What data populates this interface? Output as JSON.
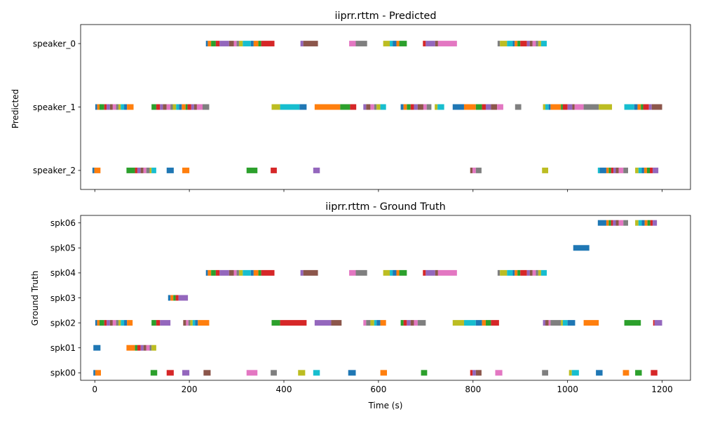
{
  "chart_data": [
    {
      "type": "timeline",
      "title": "iiprr.rttm - Predicted",
      "ylabel": "Predicted",
      "xlabel": "",
      "xlim": [
        -30,
        1260
      ],
      "xticks": [
        0,
        200,
        400,
        600,
        800,
        1000,
        1200
      ],
      "xtick_labels_shown": false,
      "rows": [
        "speaker_2",
        "speaker_1",
        "speaker_0"
      ],
      "segments": {
        "speaker_0": [
          [
            235,
            239
          ],
          [
            239,
            246
          ],
          [
            246,
            256
          ],
          [
            256,
            264
          ],
          [
            264,
            284
          ],
          [
            284,
            294
          ],
          [
            294,
            300
          ],
          [
            300,
            305
          ],
          [
            305,
            313
          ],
          [
            313,
            330
          ],
          [
            330,
            336
          ],
          [
            336,
            346
          ],
          [
            346,
            352
          ],
          [
            352,
            380
          ],
          [
            435,
            441
          ],
          [
            441,
            472
          ],
          [
            538,
            552
          ],
          [
            552,
            576
          ],
          [
            610,
            624
          ],
          [
            624,
            630
          ],
          [
            630,
            638
          ],
          [
            638,
            644
          ],
          [
            644,
            660
          ],
          [
            694,
            700
          ],
          [
            700,
            720
          ],
          [
            720,
            726
          ],
          [
            726,
            766
          ],
          [
            852,
            857
          ],
          [
            857,
            872
          ],
          [
            872,
            884
          ],
          [
            884,
            888
          ],
          [
            888,
            894
          ],
          [
            894,
            900
          ],
          [
            900,
            914
          ],
          [
            914,
            920
          ],
          [
            920,
            926
          ],
          [
            926,
            933
          ],
          [
            933,
            938
          ],
          [
            938,
            944
          ],
          [
            944,
            956
          ]
        ],
        "speaker_1": [
          [
            1,
            5
          ],
          [
            5,
            10
          ],
          [
            10,
            20
          ],
          [
            20,
            25
          ],
          [
            25,
            32
          ],
          [
            32,
            38
          ],
          [
            38,
            45
          ],
          [
            45,
            50
          ],
          [
            50,
            55
          ],
          [
            55,
            62
          ],
          [
            62,
            68
          ],
          [
            68,
            82
          ],
          [
            120,
            130
          ],
          [
            130,
            138
          ],
          [
            138,
            144
          ],
          [
            144,
            152
          ],
          [
            152,
            160
          ],
          [
            160,
            165
          ],
          [
            165,
            172
          ],
          [
            172,
            178
          ],
          [
            178,
            184
          ],
          [
            184,
            192
          ],
          [
            192,
            196
          ],
          [
            196,
            204
          ],
          [
            204,
            210
          ],
          [
            210,
            216
          ],
          [
            216,
            228
          ],
          [
            228,
            242
          ],
          [
            374,
            392
          ],
          [
            392,
            433
          ],
          [
            433,
            448
          ],
          [
            465,
            519
          ],
          [
            519,
            540
          ],
          [
            540,
            553
          ],
          [
            568,
            574
          ],
          [
            574,
            583
          ],
          [
            583,
            591
          ],
          [
            591,
            596
          ],
          [
            596,
            604
          ],
          [
            604,
            616
          ],
          [
            647,
            653
          ],
          [
            653,
            660
          ],
          [
            660,
            668
          ],
          [
            668,
            675
          ],
          [
            675,
            683
          ],
          [
            683,
            695
          ],
          [
            695,
            702
          ],
          [
            702,
            712
          ],
          [
            719,
            725
          ],
          [
            725,
            739
          ],
          [
            757,
            781
          ],
          [
            781,
            806
          ],
          [
            806,
            819
          ],
          [
            819,
            827
          ],
          [
            827,
            838
          ],
          [
            838,
            851
          ],
          [
            851,
            864
          ],
          [
            889,
            902
          ],
          [
            948,
            953
          ],
          [
            953,
            960
          ],
          [
            960,
            964
          ],
          [
            964,
            986
          ],
          [
            986,
            990
          ],
          [
            990,
            1000
          ],
          [
            1000,
            1010
          ],
          [
            1010,
            1015
          ],
          [
            1015,
            1034
          ],
          [
            1034,
            1066
          ],
          [
            1066,
            1094
          ],
          [
            1120,
            1141
          ],
          [
            1141,
            1148
          ],
          [
            1148,
            1155
          ],
          [
            1155,
            1160
          ],
          [
            1160,
            1172
          ],
          [
            1172,
            1178
          ],
          [
            1178,
            1200
          ]
        ],
        "speaker_2": [
          [
            -5,
            -1
          ],
          [
            -1,
            12
          ],
          [
            67,
            85
          ],
          [
            85,
            90
          ],
          [
            90,
            97
          ],
          [
            97,
            103
          ],
          [
            103,
            109
          ],
          [
            109,
            116
          ],
          [
            116,
            120
          ],
          [
            120,
            130
          ],
          [
            152,
            167
          ],
          [
            185,
            200
          ],
          [
            321,
            344
          ],
          [
            372,
            385
          ],
          [
            462,
            476
          ],
          [
            794,
            799
          ],
          [
            799,
            806
          ],
          [
            806,
            818
          ],
          [
            946,
            959
          ],
          [
            1064,
            1068
          ],
          [
            1068,
            1082
          ],
          [
            1082,
            1087
          ],
          [
            1087,
            1092
          ],
          [
            1092,
            1097
          ],
          [
            1097,
            1102
          ],
          [
            1102,
            1108
          ],
          [
            1108,
            1118
          ],
          [
            1118,
            1128
          ],
          [
            1143,
            1150
          ],
          [
            1150,
            1157
          ],
          [
            1157,
            1162
          ],
          [
            1162,
            1168
          ],
          [
            1168,
            1174
          ],
          [
            1174,
            1180
          ],
          [
            1180,
            1192
          ]
        ]
      }
    },
    {
      "type": "timeline",
      "title": "iiprr.rttm - Ground Truth",
      "ylabel": "Ground Truth",
      "xlabel": "Time (s)",
      "xlim": [
        -30,
        1260
      ],
      "xticks": [
        0,
        200,
        400,
        600,
        800,
        1000,
        1200
      ],
      "rows": [
        "spk00",
        "spk01",
        "spk02",
        "spk03",
        "spk04",
        "spk05",
        "spk06"
      ],
      "segments": {
        "spk06": [
          [
            1064,
            1082
          ],
          [
            1082,
            1087
          ],
          [
            1087,
            1092
          ],
          [
            1092,
            1096
          ],
          [
            1096,
            1102
          ],
          [
            1102,
            1108
          ],
          [
            1108,
            1118
          ],
          [
            1118,
            1128
          ],
          [
            1143,
            1150
          ],
          [
            1150,
            1157
          ],
          [
            1157,
            1163
          ],
          [
            1163,
            1169
          ],
          [
            1169,
            1175
          ],
          [
            1175,
            1180
          ],
          [
            1180,
            1189
          ]
        ],
        "spk05": [
          [
            1012,
            1046
          ]
        ],
        "spk04": [
          [
            235,
            239
          ],
          [
            239,
            246
          ],
          [
            246,
            256
          ],
          [
            256,
            264
          ],
          [
            264,
            284
          ],
          [
            284,
            294
          ],
          [
            294,
            300
          ],
          [
            300,
            305
          ],
          [
            305,
            313
          ],
          [
            313,
            330
          ],
          [
            330,
            336
          ],
          [
            336,
            346
          ],
          [
            346,
            352
          ],
          [
            352,
            380
          ],
          [
            435,
            441
          ],
          [
            441,
            472
          ],
          [
            538,
            552
          ],
          [
            552,
            576
          ],
          [
            610,
            624
          ],
          [
            624,
            630
          ],
          [
            630,
            638
          ],
          [
            638,
            644
          ],
          [
            644,
            660
          ],
          [
            694,
            700
          ],
          [
            700,
            720
          ],
          [
            720,
            726
          ],
          [
            726,
            766
          ],
          [
            852,
            857
          ],
          [
            857,
            872
          ],
          [
            872,
            884
          ],
          [
            884,
            888
          ],
          [
            888,
            894
          ],
          [
            894,
            900
          ],
          [
            900,
            914
          ],
          [
            914,
            920
          ],
          [
            920,
            926
          ],
          [
            926,
            933
          ],
          [
            933,
            938
          ],
          [
            938,
            944
          ],
          [
            944,
            956
          ]
        ],
        "spk03": [
          [
            155,
            160
          ],
          [
            160,
            166
          ],
          [
            166,
            171
          ],
          [
            171,
            177
          ],
          [
            177,
            197
          ]
        ],
        "spk02": [
          [
            1,
            5
          ],
          [
            5,
            10
          ],
          [
            10,
            20
          ],
          [
            20,
            25
          ],
          [
            25,
            32
          ],
          [
            32,
            38
          ],
          [
            38,
            45
          ],
          [
            45,
            50
          ],
          [
            50,
            55
          ],
          [
            55,
            62
          ],
          [
            62,
            68
          ],
          [
            68,
            80
          ],
          [
            120,
            130
          ],
          [
            130,
            138
          ],
          [
            138,
            160
          ],
          [
            187,
            193
          ],
          [
            193,
            198
          ],
          [
            198,
            202
          ],
          [
            202,
            207
          ],
          [
            207,
            212
          ],
          [
            212,
            218
          ],
          [
            218,
            242
          ],
          [
            374,
            392
          ],
          [
            392,
            448
          ],
          [
            465,
            500
          ],
          [
            500,
            522
          ],
          [
            568,
            574
          ],
          [
            574,
            583
          ],
          [
            583,
            591
          ],
          [
            591,
            596
          ],
          [
            596,
            604
          ],
          [
            604,
            616
          ],
          [
            647,
            653
          ],
          [
            653,
            660
          ],
          [
            660,
            668
          ],
          [
            668,
            675
          ],
          [
            675,
            683
          ],
          [
            683,
            700
          ],
          [
            757,
            781
          ],
          [
            781,
            806
          ],
          [
            806,
            819
          ],
          [
            819,
            827
          ],
          [
            827,
            838
          ],
          [
            838,
            855
          ],
          [
            948,
            953
          ],
          [
            953,
            960
          ],
          [
            960,
            964
          ],
          [
            964,
            986
          ],
          [
            986,
            990
          ],
          [
            990,
            1000
          ],
          [
            1000,
            1016
          ],
          [
            1034,
            1066
          ],
          [
            1120,
            1155
          ],
          [
            1181,
            1184
          ],
          [
            1184,
            1200
          ]
        ],
        "spk01": [
          [
            -3,
            12
          ],
          [
            67,
            85
          ],
          [
            85,
            90
          ],
          [
            90,
            97
          ],
          [
            97,
            103
          ],
          [
            103,
            109
          ],
          [
            109,
            116
          ],
          [
            116,
            120
          ],
          [
            120,
            130
          ]
        ],
        "spk00": [
          [
            -3,
            1
          ],
          [
            1,
            13
          ],
          [
            118,
            132
          ],
          [
            152,
            167
          ],
          [
            185,
            200
          ],
          [
            230,
            245
          ],
          [
            321,
            344
          ],
          [
            372,
            385
          ],
          [
            430,
            445
          ],
          [
            462,
            476
          ],
          [
            536,
            552
          ],
          [
            604,
            618
          ],
          [
            690,
            703
          ],
          [
            794,
            799
          ],
          [
            799,
            806
          ],
          [
            806,
            818
          ],
          [
            847,
            862
          ],
          [
            946,
            959
          ],
          [
            1003,
            1009
          ],
          [
            1009,
            1024
          ],
          [
            1060,
            1074
          ],
          [
            1117,
            1130
          ],
          [
            1143,
            1157
          ],
          [
            1176,
            1190
          ]
        ]
      }
    }
  ],
  "palette": [
    "#1f77b4",
    "#ff7f0e",
    "#2ca02c",
    "#d62728",
    "#9467bd",
    "#8c564b",
    "#e377c2",
    "#7f7f7f",
    "#bcbd22",
    "#17becf"
  ]
}
